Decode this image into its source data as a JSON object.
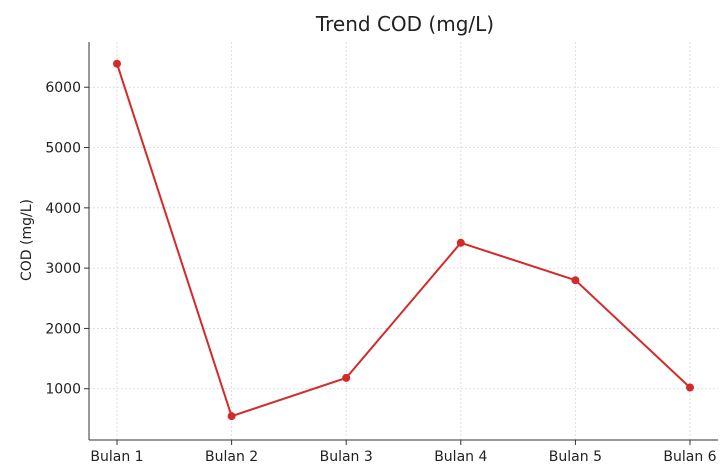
{
  "chart_data": {
    "type": "line",
    "title": "Trend COD (mg/L)",
    "xlabel": "",
    "ylabel": "COD (mg/L)",
    "categories": [
      "Bulan 1",
      "Bulan 2",
      "Bulan 3",
      "Bulan 4",
      "Bulan 5",
      "Bulan 6"
    ],
    "series": [
      {
        "values": [
          6390,
          545,
          1180,
          3420,
          2800,
          1020
        ]
      }
    ],
    "ylim": [
      150,
      6750
    ],
    "yticks": [
      1000,
      2000,
      3000,
      4000,
      5000,
      6000
    ],
    "ytick_labels": [
      "1000",
      "2000",
      "3000",
      "4000",
      "5000",
      "6000"
    ],
    "grid": true,
    "legend": "none",
    "colors": {
      "line": "#d42a2a",
      "marker": "#d42a2a",
      "grid": "#d7d7d7",
      "axis": "#333333",
      "text": "#222222"
    }
  }
}
